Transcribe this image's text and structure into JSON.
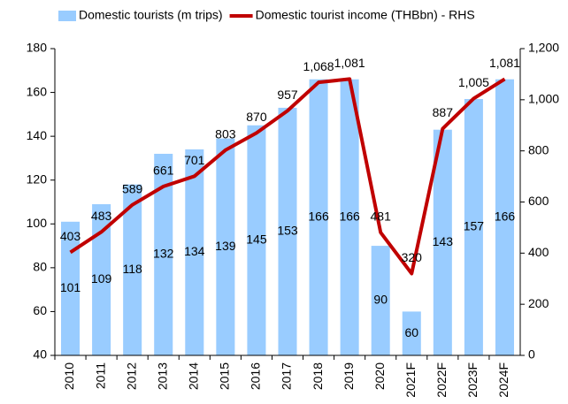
{
  "chart_data": {
    "type": "bar_line",
    "categories": [
      "2010",
      "2011",
      "2012",
      "2013",
      "2014",
      "2015",
      "2016",
      "2017",
      "2018",
      "2019",
      "2020",
      "2021F",
      "2022F",
      "2023F",
      "2024F"
    ],
    "series": [
      {
        "name": "Domestic tourists (m trips)",
        "type": "bar",
        "color": "#99ccff",
        "values": [
          101,
          109,
          118,
          132,
          134,
          139,
          145,
          153,
          166,
          166,
          90,
          60,
          143,
          157,
          166
        ]
      },
      {
        "name": "Domestic tourist income (THBbn) - RHS",
        "type": "line",
        "axis": "y2",
        "color": "#c00000",
        "values": [
          403,
          483,
          589,
          661,
          701,
          803,
          870,
          957,
          1068,
          1081,
          481,
          320,
          887,
          1005,
          1081
        ],
        "value_labels": [
          "403",
          "483",
          "589",
          "661",
          "701",
          "803",
          "870",
          "957",
          "1,068",
          "1,081",
          "481",
          "320",
          "887",
          "1,005",
          "1,081"
        ]
      }
    ],
    "ylim": [
      40,
      180
    ],
    "yticks": [
      40,
      60,
      80,
      100,
      120,
      140,
      160,
      180
    ],
    "y2lim": [
      0,
      1200
    ],
    "y2ticks": [
      0,
      200,
      400,
      600,
      800,
      {
        "value": 1000,
        "label": "1,000"
      },
      {
        "value": 1200,
        "label": "1,200"
      }
    ],
    "legend": "top",
    "grid": false
  }
}
